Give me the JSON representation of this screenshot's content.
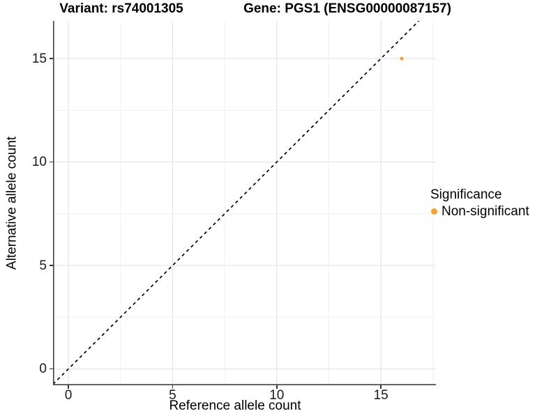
{
  "chart_data": {
    "type": "scatter",
    "title_left": "Variant: rs74001305",
    "title_right": "Gene: PGS1 (ENSG00000087157)",
    "xlabel": "Reference allele count",
    "ylabel": "Alternative allele count",
    "xlim": [
      -0.74,
      17.64
    ],
    "ylim": [
      -0.79,
      16.82
    ],
    "x_ticks": [
      0,
      5,
      10,
      15
    ],
    "y_ticks": [
      0,
      5,
      10,
      15
    ],
    "grid": {
      "major": [
        0,
        5,
        10,
        15
      ],
      "minor": [
        2.5,
        7.5,
        12.5,
        17.5
      ]
    },
    "identity_line": {
      "style": "dashed",
      "slope": 1,
      "intercept": 0,
      "color": "#000000"
    },
    "series": [
      {
        "name": "Non-significant",
        "color": "#F9A02F",
        "points": [
          {
            "x": 16,
            "y": 15
          }
        ]
      }
    ],
    "legend": {
      "title": "Significance",
      "position": "right",
      "items": [
        {
          "label": "Non-significant",
          "color": "#F9A02F"
        }
      ]
    }
  },
  "colors": {
    "background": "#FFFFFF",
    "axis_line": "#404040",
    "tick_mark": "#333333",
    "tick_text": "#1a1a1a",
    "grid_major": "#E3E3E3",
    "grid_minor": "#F0F0F0"
  }
}
